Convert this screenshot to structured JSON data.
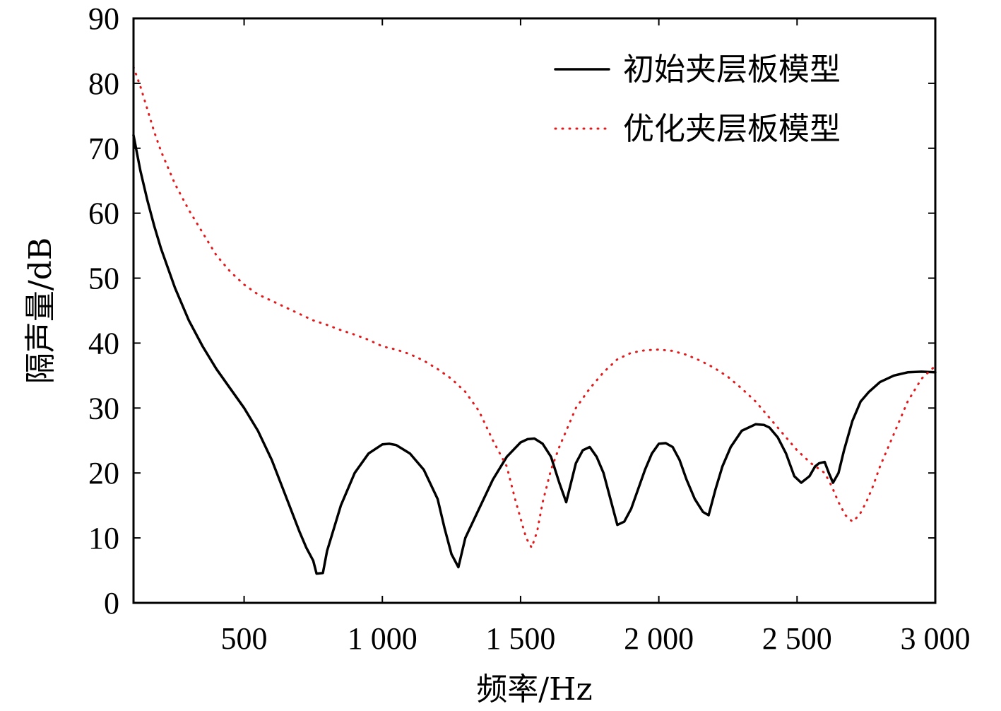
{
  "chart_data": {
    "type": "line",
    "title": "",
    "xlabel": "频率/Hz",
    "ylabel": "隔声量/dB",
    "xlim": [
      100,
      3000
    ],
    "ylim": [
      0,
      90
    ],
    "grid": false,
    "legend_position": "top-right",
    "x_ticks": [
      {
        "value": 500,
        "label": "500"
      },
      {
        "value": 1000,
        "label": "1 000"
      },
      {
        "value": 1500,
        "label": "1 500"
      },
      {
        "value": 2000,
        "label": "2 000"
      },
      {
        "value": 2500,
        "label": "2 500"
      },
      {
        "value": 3000,
        "label": "3 000"
      }
    ],
    "y_ticks": [
      {
        "value": 0,
        "label": "0"
      },
      {
        "value": 10,
        "label": "10"
      },
      {
        "value": 20,
        "label": "20"
      },
      {
        "value": 30,
        "label": "30"
      },
      {
        "value": 40,
        "label": "40"
      },
      {
        "value": 50,
        "label": "50"
      },
      {
        "value": 60,
        "label": "60"
      },
      {
        "value": 70,
        "label": "70"
      },
      {
        "value": 80,
        "label": "80"
      },
      {
        "value": 90,
        "label": "90"
      }
    ],
    "series": [
      {
        "name": "初始夹层板模型",
        "color": "#000000",
        "style": "solid",
        "x": [
          100,
          125,
          150,
          175,
          200,
          250,
          300,
          350,
          400,
          450,
          500,
          550,
          600,
          650,
          700,
          725,
          750,
          762,
          785,
          800,
          825,
          850,
          900,
          950,
          1000,
          1025,
          1050,
          1100,
          1150,
          1200,
          1225,
          1250,
          1275,
          1300,
          1350,
          1400,
          1450,
          1500,
          1525,
          1550,
          1580,
          1610,
          1640,
          1665,
          1700,
          1725,
          1750,
          1775,
          1800,
          1825,
          1850,
          1875,
          1900,
          1925,
          1950,
          1975,
          2000,
          2025,
          2050,
          2075,
          2100,
          2130,
          2160,
          2180,
          2205,
          2230,
          2260,
          2300,
          2350,
          2380,
          2400,
          2430,
          2460,
          2490,
          2515,
          2545,
          2565,
          2580,
          2600,
          2615,
          2630,
          2650,
          2670,
          2700,
          2730,
          2760,
          2800,
          2850,
          2900,
          2950,
          3000
        ],
        "y": [
          72,
          66.5,
          62,
          58,
          54.5,
          48.5,
          43.5,
          39.5,
          36,
          33,
          30,
          26.5,
          22,
          16.5,
          11,
          8.5,
          6.5,
          4.5,
          4.6,
          8,
          11.5,
          15,
          20,
          23,
          24.4,
          24.5,
          24.3,
          23,
          20.5,
          16,
          11.5,
          7.5,
          5.5,
          10,
          14.5,
          19,
          22.5,
          24.7,
          25.2,
          25.3,
          24.5,
          22.5,
          18.5,
          15.5,
          21.5,
          23.5,
          24,
          22.5,
          20,
          16,
          12,
          12.5,
          14.5,
          17.5,
          20.5,
          23,
          24.5,
          24.6,
          24,
          22,
          19,
          16,
          14,
          13.5,
          17.5,
          21,
          24,
          26.5,
          27.5,
          27.4,
          27,
          25.5,
          23,
          19.5,
          18.5,
          19.5,
          21,
          21.5,
          21.7,
          20,
          18.5,
          20,
          23.5,
          28,
          31,
          32.5,
          34,
          35,
          35.5,
          35.6,
          35.5
        ]
      },
      {
        "name": "优化夹层板模型",
        "color": "#e31a1c",
        "style": "dotted",
        "x": [
          100,
          125,
          150,
          175,
          200,
          250,
          300,
          350,
          400,
          450,
          500,
          550,
          600,
          650,
          700,
          750,
          800,
          850,
          900,
          950,
          1000,
          1050,
          1100,
          1150,
          1200,
          1250,
          1300,
          1350,
          1400,
          1450,
          1480,
          1500,
          1520,
          1540,
          1560,
          1580,
          1610,
          1640,
          1670,
          1700,
          1750,
          1800,
          1850,
          1900,
          1950,
          2000,
          2050,
          2100,
          2150,
          2200,
          2250,
          2300,
          2350,
          2400,
          2450,
          2500,
          2550,
          2600,
          2625,
          2650,
          2675,
          2700,
          2725,
          2750,
          2775,
          2800,
          2850,
          2900,
          2950,
          3000
        ],
        "y": [
          82.5,
          79.5,
          76,
          72.5,
          69.5,
          64.5,
          60.5,
          57,
          53.5,
          51,
          49,
          47.5,
          46.5,
          45.5,
          44.5,
          43.5,
          42.8,
          42,
          41.3,
          40.5,
          39.5,
          39,
          38.3,
          37.3,
          36,
          34.5,
          32.5,
          29.5,
          25,
          21,
          16,
          13,
          10,
          8.5,
          11,
          15.5,
          20.5,
          24,
          27,
          30,
          33,
          35.5,
          37.5,
          38.5,
          38.9,
          39,
          38.8,
          38.2,
          37.3,
          36.2,
          34.8,
          33,
          31,
          28.5,
          26,
          23.5,
          21.5,
          20,
          18,
          15.5,
          13.5,
          12.5,
          13.5,
          15.5,
          18,
          21,
          26,
          31,
          34.5,
          36.5
        ]
      }
    ]
  }
}
